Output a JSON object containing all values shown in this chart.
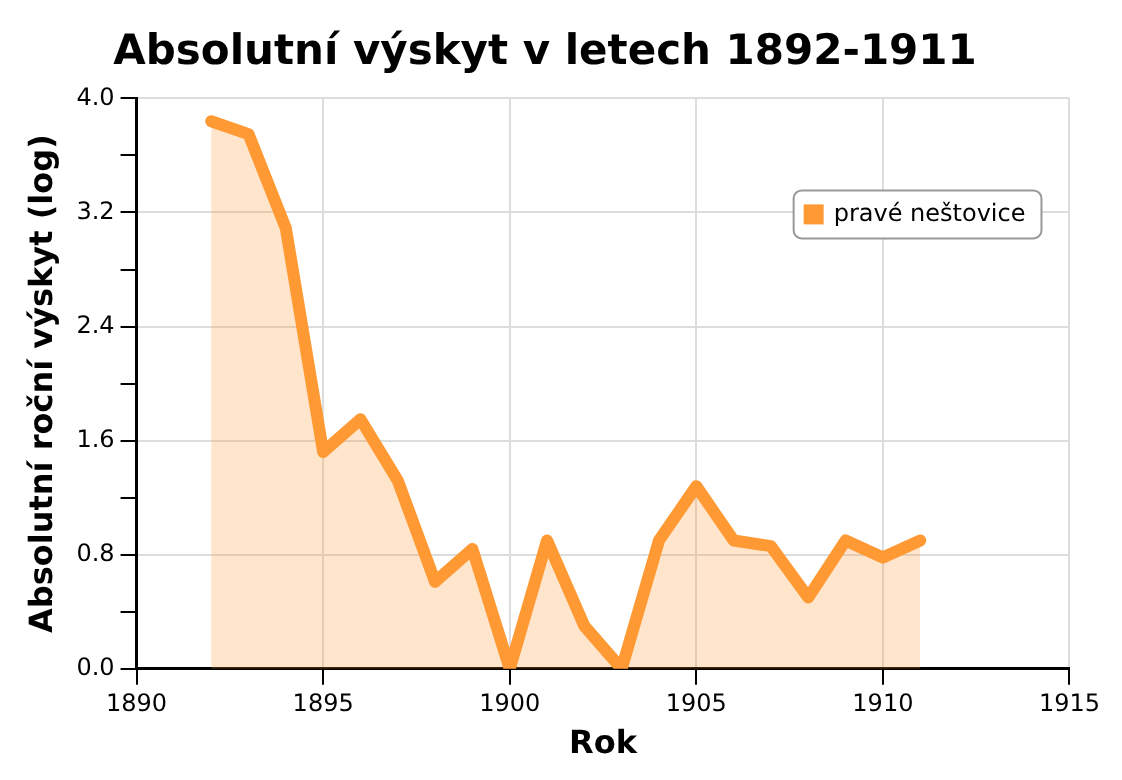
{
  "chart_data": {
    "type": "area",
    "title": "Absolutní výskyt v letech 1892-1911",
    "xlabel": "Rok",
    "ylabel": "Absolutní roční výskyt (log)",
    "x": [
      1892,
      1893,
      1894,
      1895,
      1896,
      1897,
      1898,
      1899,
      1900,
      1901,
      1902,
      1903,
      1904,
      1905,
      1906,
      1907,
      1908,
      1909,
      1910,
      1911
    ],
    "series": [
      {
        "name": "pravé neštovice",
        "color": "#ff9933",
        "values": [
          3.84,
          3.75,
          3.09,
          1.52,
          1.75,
          1.32,
          0.61,
          0.84,
          0,
          0.9,
          0.3,
          0,
          0.9,
          1.28,
          0.9,
          0.86,
          0.5,
          0.9,
          0.78,
          0.9
        ]
      }
    ],
    "xlim": [
      1890,
      1915
    ],
    "xticks": [
      1890,
      1895,
      1900,
      1905,
      1910,
      1915
    ],
    "ylim": [
      0,
      4
    ],
    "yticks": [
      {
        "value": 0,
        "label": "0.0"
      },
      {
        "value": 0.4,
        "label": null
      },
      {
        "value": 0.8,
        "label": "0.8"
      },
      {
        "value": 1.2,
        "label": null
      },
      {
        "value": 1.6,
        "label": "1.6"
      },
      {
        "value": 2.0,
        "label": null
      },
      {
        "value": 2.4,
        "label": "2.4"
      },
      {
        "value": 2.8,
        "label": null
      },
      {
        "value": 3.2,
        "label": "3.2"
      },
      {
        "value": 3.6,
        "label": null
      },
      {
        "value": 4.0,
        "label": "4.0"
      }
    ],
    "grid": true,
    "legend": "top right",
    "marker": "none",
    "line_style": "solid"
  }
}
